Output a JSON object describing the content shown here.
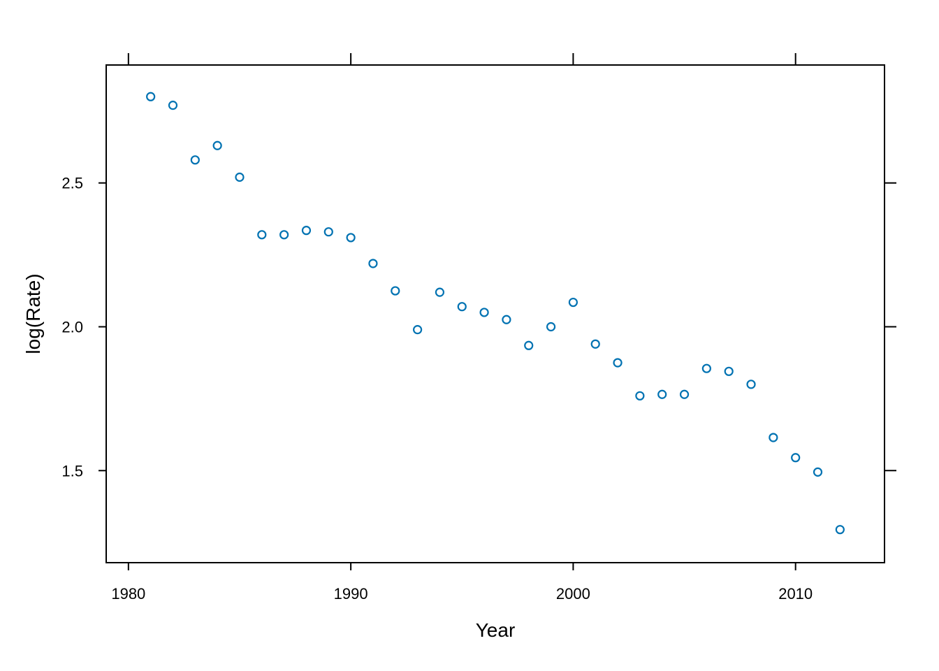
{
  "chart_data": {
    "type": "scatter",
    "title": "",
    "xlabel": "Year",
    "ylabel": "log(Rate)",
    "xlim": [
      1979,
      2014
    ],
    "ylim": [
      1.18,
      2.91
    ],
    "x_ticks": [
      1980,
      1990,
      2000,
      2010
    ],
    "x_tick_labels": [
      "1980",
      "1990",
      "2000",
      "2010"
    ],
    "y_ticks": [
      1.5,
      2.0,
      2.5
    ],
    "y_tick_labels": [
      "1.5",
      "2.0",
      "2.5"
    ],
    "grid": false,
    "marker": "open-circle",
    "point_color": "#0072B2",
    "series": [
      {
        "x": [
          1981,
          1982,
          1983,
          1984,
          1985,
          1986,
          1987,
          1988,
          1989,
          1990,
          1991,
          1992,
          1993,
          1994,
          1995,
          1996,
          1997,
          1998,
          1999,
          2000,
          2001,
          2002,
          2003,
          2004,
          2005,
          2006,
          2007,
          2008,
          2009,
          2010,
          2011,
          2012
        ],
        "y": [
          2.8,
          2.77,
          2.58,
          2.63,
          2.52,
          2.32,
          2.32,
          2.335,
          2.33,
          2.31,
          2.22,
          2.125,
          1.99,
          2.12,
          2.07,
          2.05,
          2.025,
          1.935,
          2.0,
          2.085,
          1.94,
          1.875,
          1.76,
          1.765,
          1.765,
          1.855,
          1.845,
          1.8,
          1.615,
          1.545,
          1.495,
          1.295
        ]
      }
    ]
  }
}
